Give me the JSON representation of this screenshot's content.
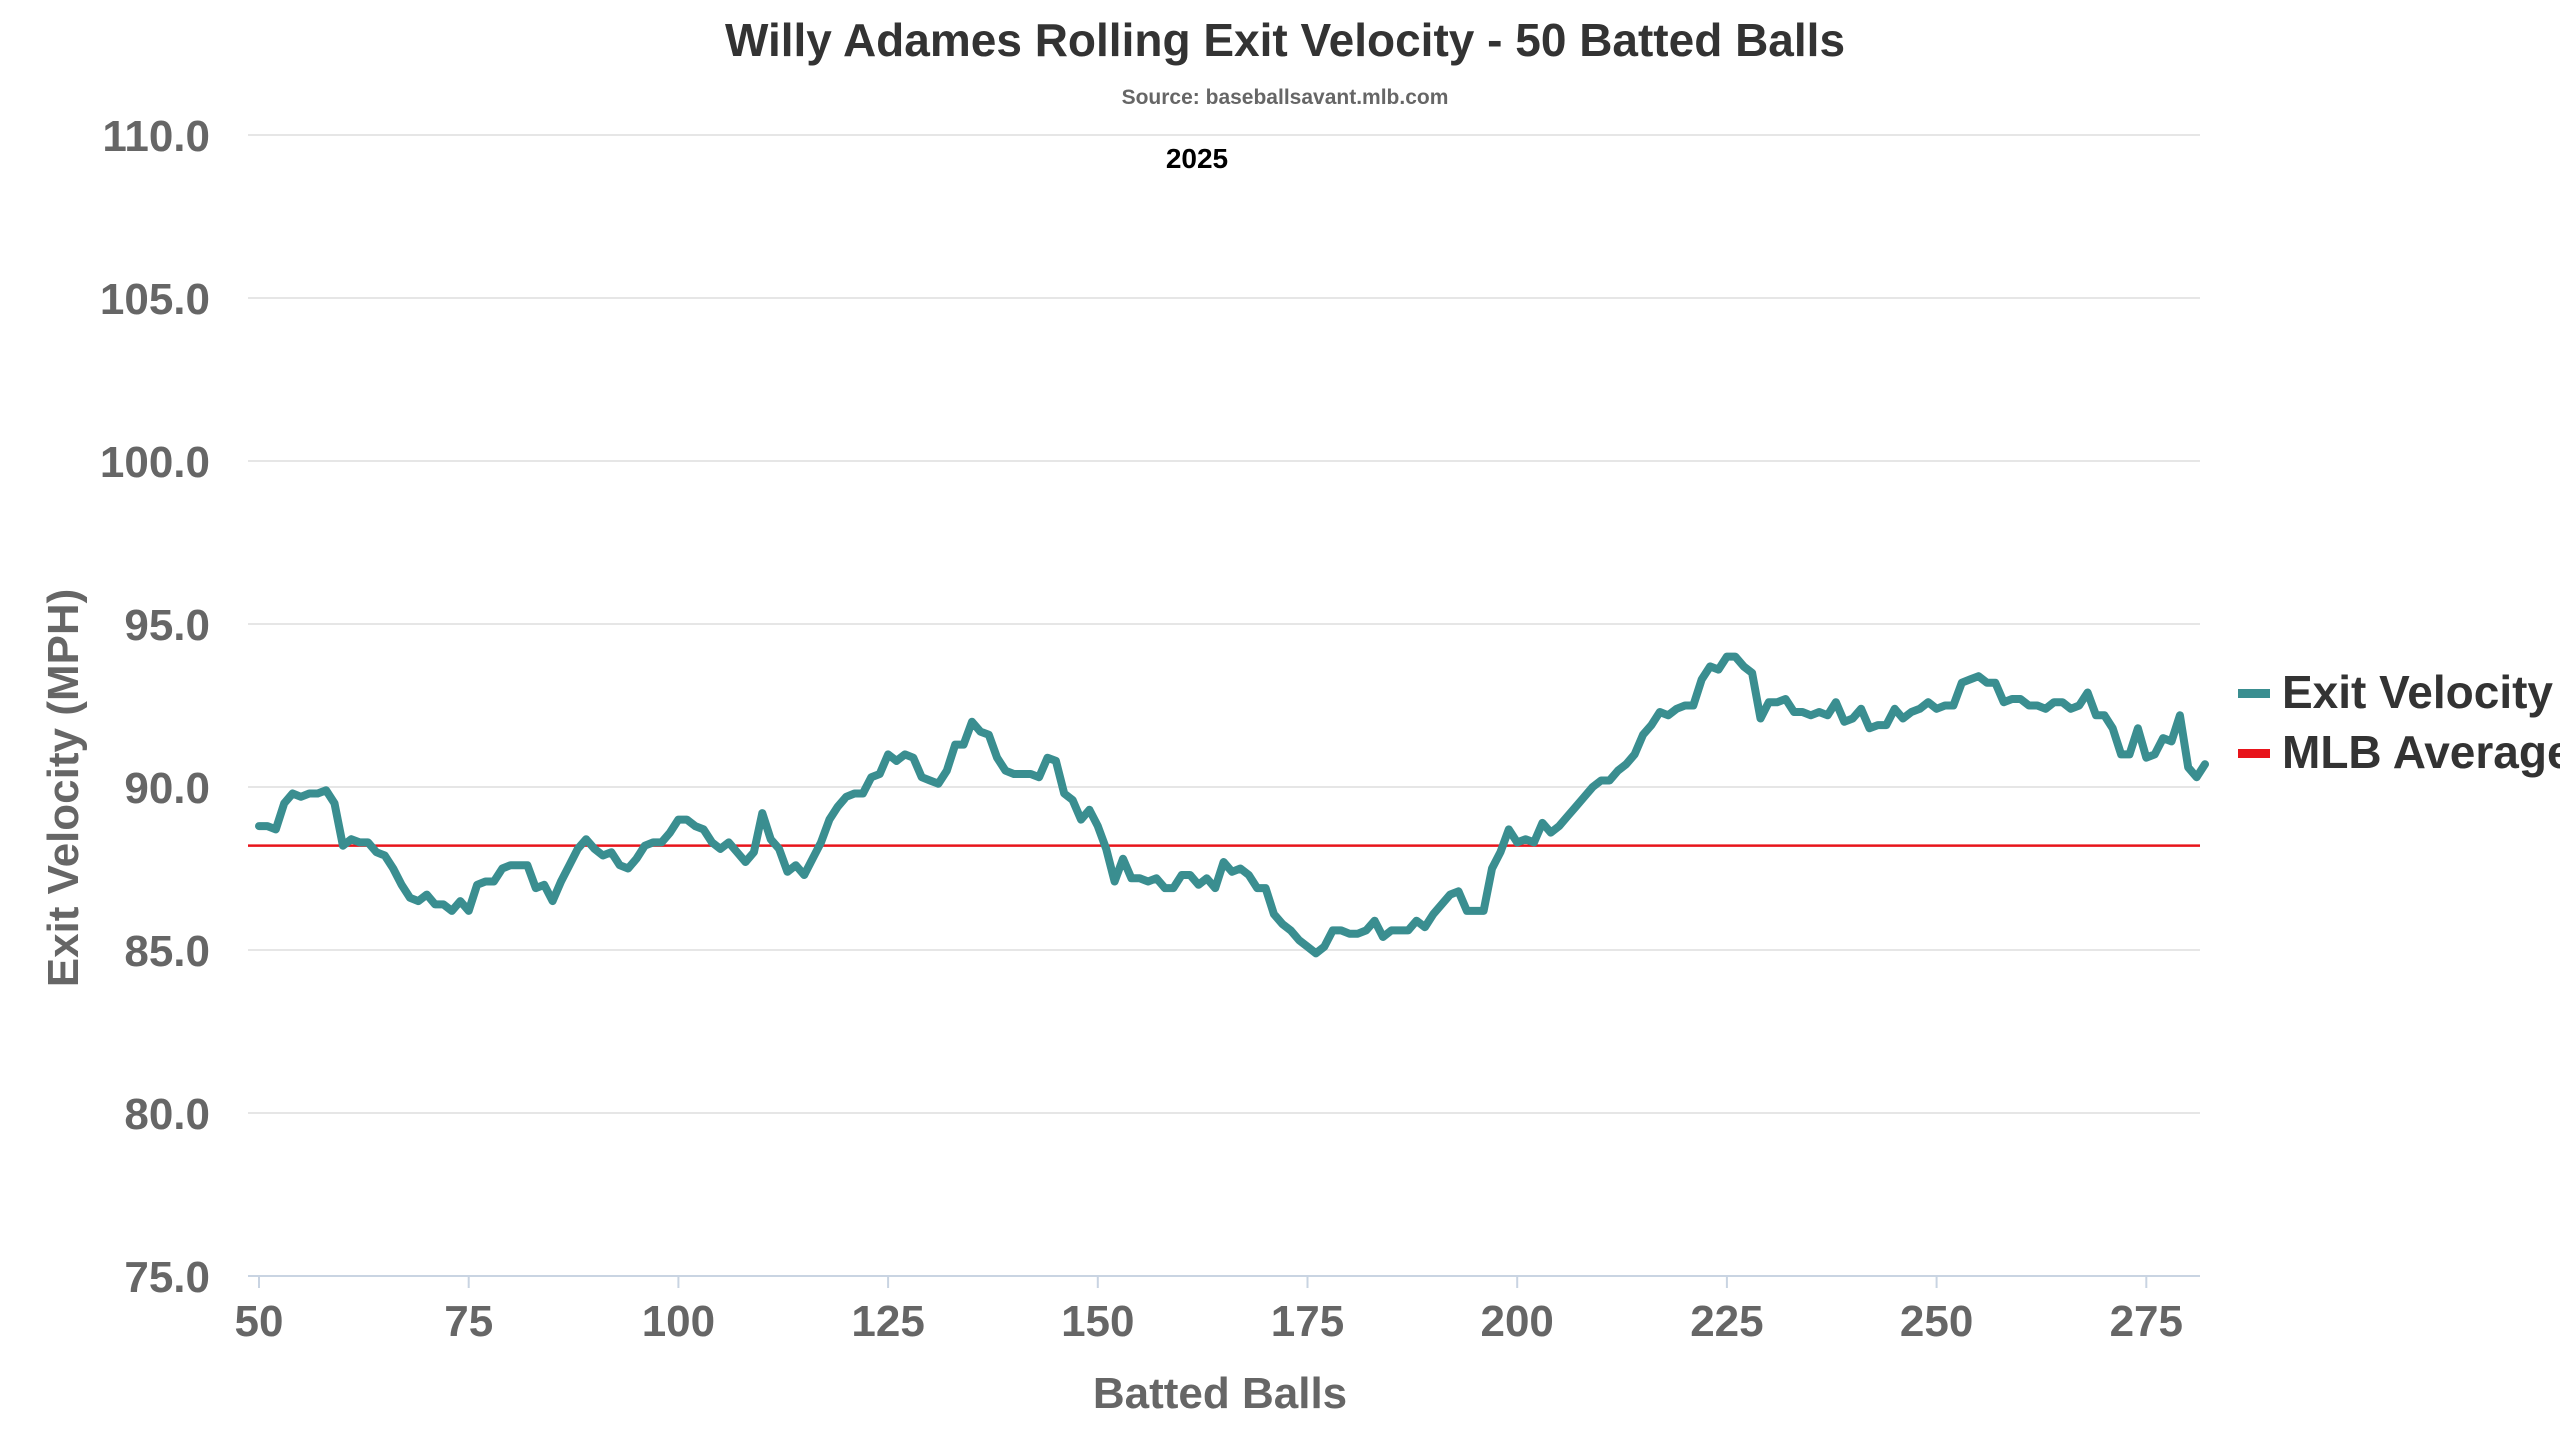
{
  "chart_data": {
    "type": "line",
    "title": "Willy Adames Rolling Exit Velocity - 50 Batted Balls",
    "subtitle": "Source: baseballsavant.mlb.com",
    "annotation": "2025",
    "xlabel": "Batted Balls",
    "ylabel": "Exit Velocity (MPH)",
    "xlim": [
      50,
      279
    ],
    "ylim": [
      75,
      110
    ],
    "x_ticks": [
      "50",
      "75",
      "100",
      "125",
      "150",
      "175",
      "200",
      "225",
      "250",
      "275"
    ],
    "y_ticks": [
      "75.0",
      "80.0",
      "85.0",
      "90.0",
      "95.0",
      "100.0",
      "105.0",
      "110.0"
    ],
    "grid": true,
    "legend_position": "right",
    "series": [
      {
        "name": "Exit Velocity",
        "color": "#3a8e90",
        "points": [
          [
            50,
            88.8
          ],
          [
            51,
            88.8
          ],
          [
            52,
            88.7
          ],
          [
            53,
            89.5
          ],
          [
            54,
            89.8
          ],
          [
            55,
            89.7
          ],
          [
            56,
            89.8
          ],
          [
            57,
            89.8
          ],
          [
            58,
            89.9
          ],
          [
            59,
            89.5
          ],
          [
            60,
            88.2
          ],
          [
            61,
            88.4
          ],
          [
            62,
            88.3
          ],
          [
            63,
            88.3
          ],
          [
            64,
            88.0
          ],
          [
            65,
            87.9
          ],
          [
            66,
            87.5
          ],
          [
            67,
            87.0
          ],
          [
            68,
            86.6
          ],
          [
            69,
            86.5
          ],
          [
            70,
            86.7
          ],
          [
            71,
            86.4
          ],
          [
            72,
            86.4
          ],
          [
            73,
            86.2
          ],
          [
            74,
            86.5
          ],
          [
            75,
            86.2
          ],
          [
            76,
            87.0
          ],
          [
            77,
            87.1
          ],
          [
            78,
            87.1
          ],
          [
            79,
            87.5
          ],
          [
            80,
            87.6
          ],
          [
            81,
            87.6
          ],
          [
            82,
            87.6
          ],
          [
            83,
            86.9
          ],
          [
            84,
            87.0
          ],
          [
            85,
            86.5
          ],
          [
            86,
            87.1
          ],
          [
            87,
            87.6
          ],
          [
            88,
            88.1
          ],
          [
            89,
            88.4
          ],
          [
            90,
            88.1
          ],
          [
            91,
            87.9
          ],
          [
            92,
            88.0
          ],
          [
            93,
            87.6
          ],
          [
            94,
            87.5
          ],
          [
            95,
            87.8
          ],
          [
            96,
            88.2
          ],
          [
            97,
            88.3
          ],
          [
            98,
            88.3
          ],
          [
            99,
            88.6
          ],
          [
            100,
            89.0
          ],
          [
            101,
            89.0
          ],
          [
            102,
            88.8
          ],
          [
            103,
            88.7
          ],
          [
            104,
            88.3
          ],
          [
            105,
            88.1
          ],
          [
            106,
            88.3
          ],
          [
            107,
            88.0
          ],
          [
            108,
            87.7
          ],
          [
            109,
            88.0
          ],
          [
            110,
            89.2
          ],
          [
            111,
            88.4
          ],
          [
            112,
            88.1
          ],
          [
            113,
            87.4
          ],
          [
            114,
            87.6
          ],
          [
            115,
            87.3
          ],
          [
            116,
            87.8
          ],
          [
            117,
            88.3
          ],
          [
            118,
            89.0
          ],
          [
            119,
            89.4
          ],
          [
            120,
            89.7
          ],
          [
            121,
            89.8
          ],
          [
            122,
            89.8
          ],
          [
            123,
            90.3
          ],
          [
            124,
            90.4
          ],
          [
            125,
            91.0
          ],
          [
            126,
            90.8
          ],
          [
            127,
            91.0
          ],
          [
            128,
            90.9
          ],
          [
            129,
            90.3
          ],
          [
            130,
            90.2
          ],
          [
            131,
            90.1
          ],
          [
            132,
            90.5
          ],
          [
            133,
            91.3
          ],
          [
            134,
            91.3
          ],
          [
            135,
            92.0
          ],
          [
            136,
            91.7
          ],
          [
            137,
            91.6
          ],
          [
            138,
            90.9
          ],
          [
            139,
            90.5
          ],
          [
            140,
            90.4
          ],
          [
            141,
            90.4
          ],
          [
            142,
            90.4
          ],
          [
            143,
            90.3
          ],
          [
            144,
            90.9
          ],
          [
            145,
            90.8
          ],
          [
            146,
            89.8
          ],
          [
            147,
            89.6
          ],
          [
            148,
            89.0
          ],
          [
            149,
            89.3
          ],
          [
            150,
            88.8
          ],
          [
            151,
            88.1
          ],
          [
            152,
            87.1
          ],
          [
            153,
            87.8
          ],
          [
            154,
            87.2
          ],
          [
            155,
            87.2
          ],
          [
            156,
            87.1
          ],
          [
            157,
            87.2
          ],
          [
            158,
            86.9
          ],
          [
            159,
            86.9
          ],
          [
            160,
            87.3
          ],
          [
            161,
            87.3
          ],
          [
            162,
            87.0
          ],
          [
            163,
            87.2
          ],
          [
            164,
            86.9
          ],
          [
            165,
            87.7
          ],
          [
            166,
            87.4
          ],
          [
            167,
            87.5
          ],
          [
            168,
            87.3
          ],
          [
            169,
            86.9
          ],
          [
            170,
            86.9
          ],
          [
            171,
            86.1
          ],
          [
            172,
            85.8
          ],
          [
            173,
            85.6
          ],
          [
            174,
            85.3
          ],
          [
            175,
            85.1
          ],
          [
            176,
            84.9
          ],
          [
            177,
            85.1
          ],
          [
            178,
            85.6
          ],
          [
            179,
            85.6
          ],
          [
            180,
            85.5
          ],
          [
            181,
            85.5
          ],
          [
            182,
            85.6
          ],
          [
            183,
            85.9
          ],
          [
            184,
            85.4
          ],
          [
            185,
            85.6
          ],
          [
            186,
            85.6
          ],
          [
            187,
            85.6
          ],
          [
            188,
            85.9
          ],
          [
            189,
            85.7
          ],
          [
            190,
            86.1
          ],
          [
            191,
            86.4
          ],
          [
            192,
            86.7
          ],
          [
            193,
            86.8
          ],
          [
            194,
            86.2
          ],
          [
            195,
            86.2
          ],
          [
            196,
            86.2
          ],
          [
            197,
            87.5
          ],
          [
            198,
            88.0
          ],
          [
            199,
            88.7
          ],
          [
            200,
            88.3
          ],
          [
            201,
            88.4
          ],
          [
            202,
            88.3
          ],
          [
            203,
            88.9
          ],
          [
            204,
            88.6
          ],
          [
            205,
            88.8
          ],
          [
            206,
            89.1
          ],
          [
            207,
            89.4
          ],
          [
            208,
            89.7
          ],
          [
            209,
            90.0
          ],
          [
            210,
            90.2
          ],
          [
            211,
            90.2
          ],
          [
            212,
            90.5
          ],
          [
            213,
            90.7
          ],
          [
            214,
            91.0
          ],
          [
            215,
            91.6
          ],
          [
            216,
            91.9
          ],
          [
            217,
            92.3
          ],
          [
            218,
            92.2
          ],
          [
            219,
            92.4
          ],
          [
            220,
            92.5
          ],
          [
            221,
            92.5
          ],
          [
            222,
            93.3
          ],
          [
            223,
            93.7
          ],
          [
            224,
            93.6
          ],
          [
            225,
            94.0
          ],
          [
            226,
            94.0
          ],
          [
            227,
            93.7
          ],
          [
            228,
            93.5
          ],
          [
            229,
            92.1
          ],
          [
            230,
            92.6
          ],
          [
            231,
            92.6
          ],
          [
            232,
            92.7
          ],
          [
            233,
            92.3
          ],
          [
            234,
            92.3
          ],
          [
            235,
            92.2
          ],
          [
            236,
            92.3
          ],
          [
            237,
            92.2
          ],
          [
            238,
            92.6
          ],
          [
            239,
            92.0
          ],
          [
            240,
            92.1
          ],
          [
            241,
            92.4
          ],
          [
            242,
            91.8
          ],
          [
            243,
            91.9
          ],
          [
            244,
            91.9
          ],
          [
            245,
            92.4
          ],
          [
            246,
            92.1
          ],
          [
            247,
            92.3
          ],
          [
            248,
            92.4
          ],
          [
            249,
            92.6
          ],
          [
            250,
            92.4
          ],
          [
            251,
            92.5
          ],
          [
            252,
            92.5
          ],
          [
            253,
            93.2
          ],
          [
            254,
            93.3
          ],
          [
            255,
            93.4
          ],
          [
            256,
            93.2
          ],
          [
            257,
            93.2
          ],
          [
            258,
            92.6
          ],
          [
            259,
            92.7
          ],
          [
            260,
            92.7
          ],
          [
            261,
            92.5
          ],
          [
            262,
            92.5
          ],
          [
            263,
            92.4
          ],
          [
            264,
            92.6
          ],
          [
            265,
            92.6
          ],
          [
            266,
            92.4
          ],
          [
            267,
            92.5
          ],
          [
            268,
            92.9
          ],
          [
            269,
            92.2
          ],
          [
            270,
            92.2
          ],
          [
            271,
            91.8
          ],
          [
            272,
            91.0
          ],
          [
            273,
            91.0
          ],
          [
            274,
            91.8
          ],
          [
            275,
            90.9
          ],
          [
            276,
            91.0
          ],
          [
            277,
            91.5
          ],
          [
            278,
            91.4
          ],
          [
            279,
            92.2
          ],
          [
            280,
            90.6
          ],
          [
            281,
            90.3
          ],
          [
            282,
            90.7
          ]
        ]
      },
      {
        "name": "MLB Average",
        "color": "#e8141b",
        "value": 88.2
      }
    ]
  }
}
